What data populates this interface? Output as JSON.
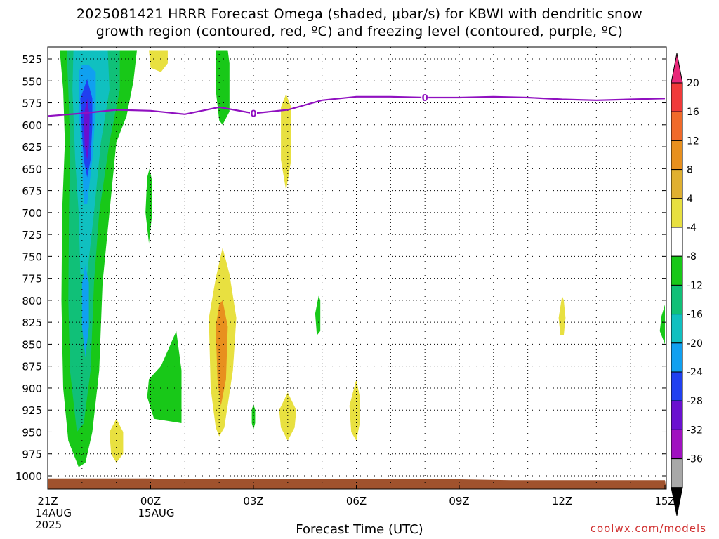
{
  "title": {
    "line1": "2025081421 HRRR Forecast Omega (shaded, μbar/s) for KBWI with dendritic snow",
    "line2": "growth region (contoured, red, ºC) and freezing level (contoured, purple, ºC)"
  },
  "credit": "coolwx.com/models",
  "chart_data": {
    "type": "heatmap",
    "xlabel": "Forecast Time (UTC)",
    "x_ticks": [
      {
        "hour": 0,
        "label": "21Z",
        "sub": [
          "14AUG",
          "2025"
        ]
      },
      {
        "hour": 3,
        "label": "00Z",
        "sub": [
          "15AUG"
        ]
      },
      {
        "hour": 6,
        "label": "03Z",
        "sub": []
      },
      {
        "hour": 9,
        "label": "06Z",
        "sub": []
      },
      {
        "hour": 12,
        "label": "09Z",
        "sub": []
      },
      {
        "hour": 15,
        "label": "12Z",
        "sub": []
      },
      {
        "hour": 18,
        "label": "15Z",
        "sub": []
      }
    ],
    "xlim": [
      0,
      18
    ],
    "y_ticks": [
      525,
      550,
      575,
      600,
      625,
      650,
      675,
      700,
      725,
      750,
      775,
      800,
      825,
      850,
      875,
      900,
      925,
      950,
      975,
      1000
    ],
    "ylim": [
      515,
      1010
    ],
    "y_inverted": true,
    "colorbar": {
      "labels": [
        "20",
        "16",
        "12",
        "8",
        "4",
        "-4",
        "-8",
        "-12",
        "-16",
        "-20",
        "-24",
        "-28",
        "-32",
        "-36"
      ],
      "colors": [
        "#e8287a",
        "#f03a3a",
        "#f06a2a",
        "#e8901e",
        "#e0b030",
        "#e8e040",
        "#ffffff",
        "#18c818",
        "#10c078",
        "#10c0c0",
        "#10a0f0",
        "#2040f0",
        "#6a10d0",
        "#a010c0",
        "#a8a8a8",
        "#000000"
      ]
    },
    "freezing_level": {
      "label": "0",
      "color": "#9010c0",
      "points": [
        [
          0,
          590
        ],
        [
          1,
          587
        ],
        [
          2,
          583
        ],
        [
          3,
          584
        ],
        [
          4,
          588
        ],
        [
          5,
          580
        ],
        [
          6,
          587
        ],
        [
          7,
          583
        ],
        [
          8,
          572
        ],
        [
          9,
          568
        ],
        [
          10,
          568
        ],
        [
          11,
          569
        ],
        [
          12,
          569
        ],
        [
          13,
          568
        ],
        [
          14,
          569
        ],
        [
          15,
          571
        ],
        [
          16,
          572
        ],
        [
          17,
          571
        ],
        [
          18,
          570
        ]
      ],
      "label_positions": [
        [
          6,
          587
        ],
        [
          11,
          569
        ]
      ]
    },
    "omega_regions": [
      {
        "color": "#18c818",
        "points": [
          [
            0.35,
            515
          ],
          [
            0.45,
            560
          ],
          [
            0.5,
            620
          ],
          [
            0.42,
            700
          ],
          [
            0.4,
            800
          ],
          [
            0.45,
            900
          ],
          [
            0.6,
            960
          ],
          [
            0.9,
            990
          ],
          [
            1.1,
            985
          ],
          [
            1.3,
            950
          ],
          [
            1.5,
            880
          ],
          [
            1.6,
            780
          ],
          [
            1.8,
            700
          ],
          [
            2.0,
            620
          ],
          [
            2.3,
            590
          ],
          [
            2.5,
            550
          ],
          [
            2.6,
            515
          ]
        ]
      },
      {
        "color": "#10c078",
        "points": [
          [
            0.55,
            515
          ],
          [
            0.6,
            560
          ],
          [
            0.65,
            620
          ],
          [
            0.62,
            700
          ],
          [
            0.6,
            800
          ],
          [
            0.65,
            880
          ],
          [
            0.85,
            950
          ],
          [
            1.05,
            940
          ],
          [
            1.25,
            880
          ],
          [
            1.35,
            780
          ],
          [
            1.5,
            700
          ],
          [
            1.8,
            620
          ],
          [
            2.1,
            560
          ],
          [
            2.1,
            515
          ]
        ]
      },
      {
        "color": "#10c0c0",
        "points": [
          [
            0.75,
            515
          ],
          [
            0.72,
            560
          ],
          [
            0.8,
            640
          ],
          [
            0.9,
            700
          ],
          [
            0.95,
            770
          ],
          [
            1.15,
            770
          ],
          [
            1.35,
            700
          ],
          [
            1.55,
            620
          ],
          [
            1.8,
            560
          ],
          [
            1.75,
            515
          ]
        ]
      },
      {
        "color": "#10a0f0",
        "points": [
          [
            0.9,
            540
          ],
          [
            0.9,
            580
          ],
          [
            1.0,
            640
          ],
          [
            1.05,
            690
          ],
          [
            1.15,
            690
          ],
          [
            1.3,
            640
          ],
          [
            1.4,
            580
          ],
          [
            1.4,
            540
          ],
          [
            1.2,
            532
          ],
          [
            1.0,
            532
          ]
        ]
      },
      {
        "color": "#10a0f0",
        "points": [
          [
            1.0,
            780
          ],
          [
            1.0,
            830
          ],
          [
            1.1,
            865
          ],
          [
            1.2,
            830
          ],
          [
            1.2,
            780
          ],
          [
            1.1,
            760
          ]
        ]
      },
      {
        "color": "#2040f0",
        "points": [
          [
            0.95,
            570
          ],
          [
            1.0,
            610
          ],
          [
            1.05,
            640
          ],
          [
            1.15,
            660
          ],
          [
            1.25,
            640
          ],
          [
            1.3,
            600
          ],
          [
            1.3,
            570
          ],
          [
            1.15,
            548
          ]
        ]
      },
      {
        "color": "#6a10d0",
        "points": [
          [
            1.05,
            590
          ],
          [
            1.08,
            625
          ],
          [
            1.15,
            640
          ],
          [
            1.2,
            625
          ],
          [
            1.22,
            590
          ],
          [
            1.15,
            570
          ]
        ]
      },
      {
        "color": "#18c818",
        "points": [
          [
            4.9,
            515
          ],
          [
            4.9,
            560
          ],
          [
            5.0,
            595
          ],
          [
            5.1,
            600
          ],
          [
            5.3,
            585
          ],
          [
            5.3,
            530
          ],
          [
            5.25,
            515
          ]
        ]
      },
      {
        "color": "#18c818",
        "points": [
          [
            2.9,
            660
          ],
          [
            2.85,
            700
          ],
          [
            2.95,
            735
          ],
          [
            3.05,
            700
          ],
          [
            3.05,
            665
          ],
          [
            2.97,
            650
          ]
        ]
      },
      {
        "color": "#18c818",
        "points": [
          [
            2.9,
            910
          ],
          [
            3.1,
            935
          ],
          [
            3.9,
            940
          ],
          [
            3.9,
            880
          ],
          [
            3.75,
            835
          ],
          [
            3.3,
            875
          ],
          [
            2.95,
            890
          ]
        ]
      },
      {
        "color": "#18c818",
        "points": [
          [
            5.95,
            925
          ],
          [
            5.95,
            940
          ],
          [
            6.0,
            947
          ],
          [
            6.05,
            940
          ],
          [
            6.05,
            925
          ],
          [
            6.0,
            918
          ]
        ]
      },
      {
        "color": "#18c818",
        "points": [
          [
            7.8,
            815
          ],
          [
            7.85,
            840
          ],
          [
            7.95,
            835
          ],
          [
            7.95,
            800
          ],
          [
            7.9,
            795
          ]
        ]
      },
      {
        "color": "#18c818",
        "points": [
          [
            17.9,
            818
          ],
          [
            17.85,
            835
          ],
          [
            18.0,
            850
          ],
          [
            18.0,
            805
          ]
        ]
      },
      {
        "color": "#e8e040",
        "points": [
          [
            2.95,
            515
          ],
          [
            3.0,
            535
          ],
          [
            3.3,
            540
          ],
          [
            3.5,
            530
          ],
          [
            3.5,
            515
          ]
        ]
      },
      {
        "color": "#e8e040",
        "points": [
          [
            6.8,
            580
          ],
          [
            6.8,
            640
          ],
          [
            6.95,
            675
          ],
          [
            7.1,
            640
          ],
          [
            7.1,
            580
          ],
          [
            6.95,
            565
          ]
        ]
      },
      {
        "color": "#e8e040",
        "points": [
          [
            1.8,
            950
          ],
          [
            1.85,
            975
          ],
          [
            2.0,
            985
          ],
          [
            2.2,
            975
          ],
          [
            2.2,
            950
          ],
          [
            2.0,
            935
          ]
        ]
      },
      {
        "color": "#e8e040",
        "points": [
          [
            4.7,
            820
          ],
          [
            4.75,
            900
          ],
          [
            4.9,
            945
          ],
          [
            5.0,
            955
          ],
          [
            5.15,
            945
          ],
          [
            5.4,
            880
          ],
          [
            5.5,
            820
          ],
          [
            5.3,
            770
          ],
          [
            5.1,
            740
          ],
          [
            4.9,
            775
          ]
        ]
      },
      {
        "color": "#e8e040",
        "points": [
          [
            6.75,
            925
          ],
          [
            6.8,
            945
          ],
          [
            7.0,
            960
          ],
          [
            7.2,
            945
          ],
          [
            7.25,
            925
          ],
          [
            7.0,
            905
          ]
        ]
      },
      {
        "color": "#e8e040",
        "points": [
          [
            8.8,
            920
          ],
          [
            8.85,
            950
          ],
          [
            9.0,
            960
          ],
          [
            9.1,
            940
          ],
          [
            9.1,
            910
          ],
          [
            9.0,
            890
          ]
        ]
      },
      {
        "color": "#e8e040",
        "points": [
          [
            14.9,
            820
          ],
          [
            14.95,
            840
          ],
          [
            15.05,
            840
          ],
          [
            15.1,
            820
          ],
          [
            15.05,
            800
          ],
          [
            15.0,
            795
          ]
        ]
      },
      {
        "color": "#e8901e",
        "points": [
          [
            4.9,
            830
          ],
          [
            4.95,
            890
          ],
          [
            5.05,
            920
          ],
          [
            5.2,
            890
          ],
          [
            5.25,
            830
          ],
          [
            5.1,
            800
          ],
          [
            5.0,
            805
          ]
        ]
      }
    ],
    "ground": {
      "color": "#a0522d",
      "points": [
        [
          0,
          1003
        ],
        [
          3,
          1003
        ],
        [
          3.5,
          1004
        ],
        [
          12,
          1004
        ],
        [
          13.5,
          1005
        ],
        [
          18,
          1005
        ]
      ]
    }
  }
}
